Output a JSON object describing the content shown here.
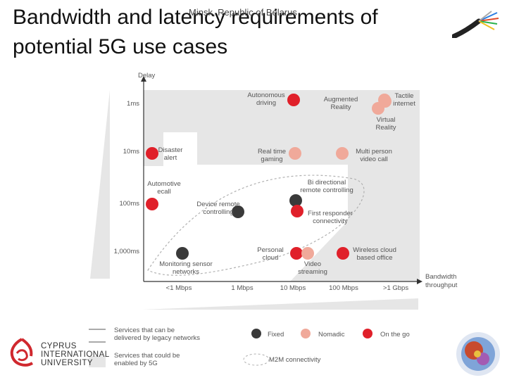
{
  "slide": {
    "title": "Bandwidth and latency requirements of potential 5G use cases",
    "subtitle": "Minsk, Republic of Belarus"
  },
  "logo": {
    "line1": "CYPRUS",
    "line2": "INTERNATIONAL",
    "line3": "UNIVERSITY"
  },
  "colors": {
    "fixed": "#3a3a3a",
    "nomadic": "#f0a99a",
    "on_the_go": "#e0202a",
    "chart_bg": "#e6e6e6",
    "text": "#555555"
  },
  "chart_data": {
    "type": "scatter",
    "xlabel": "Bandwidth throughput",
    "ylabel": "Delay",
    "x_categories": [
      "<1 Mbps",
      "1 Mbps",
      "10 Mbps",
      "100 Mbps",
      ">1 Gbps"
    ],
    "y_categories": [
      "1ms",
      "10ms",
      "100ms",
      "1,000ms"
    ],
    "points": [
      {
        "label": "Autonomous driving",
        "x": "10 Mbps",
        "y": "1ms",
        "category": "on_the_go"
      },
      {
        "label": "Augmented Reality",
        "x": "100 Mbps",
        "y": "1ms",
        "category": "nomadic"
      },
      {
        "label": "Tactile internet",
        "x": ">1 Gbps",
        "y": "1ms",
        "category": "nomadic"
      },
      {
        "label": "Virtual Reality",
        "x": ">1 Gbps",
        "y": "1ms",
        "category": "nomadic"
      },
      {
        "label": "Disaster alert",
        "x": "<1 Mbps",
        "y": "10ms",
        "category": "on_the_go"
      },
      {
        "label": "Real time gaming",
        "x": "10 Mbps",
        "y": "10ms",
        "category": "nomadic"
      },
      {
        "label": "Multi person video call",
        "x": "100 Mbps",
        "y": "10ms",
        "category": "nomadic"
      },
      {
        "label": "Automotive ecall",
        "x": "<1 Mbps",
        "y": "100ms",
        "category": "on_the_go"
      },
      {
        "label": "Device remote controlling",
        "x": "1 Mbps",
        "y": "100ms",
        "category": "fixed"
      },
      {
        "label": "Bi directional remote controlling",
        "x": "10 Mbps",
        "y": "100ms",
        "category": "fixed"
      },
      {
        "label": "First responder connectivity",
        "x": "10 Mbps",
        "y": "100ms",
        "category": "on_the_go"
      },
      {
        "label": "Monitoring sensor networks",
        "x": "<1 Mbps",
        "y": "1,000ms",
        "category": "fixed"
      },
      {
        "label": "Personal cloud",
        "x": "10 Mbps",
        "y": "1,000ms",
        "category": "on_the_go"
      },
      {
        "label": "Video streaming",
        "x": "10 Mbps",
        "y": "1,000ms",
        "category": "nomadic"
      },
      {
        "label": "Wireless cloud based office",
        "x": "100 Mbps",
        "y": "1,000ms",
        "category": "on_the_go"
      }
    ],
    "legend": {
      "legacy": "Services that can be delivered by legacy networks",
      "new5g": "Services that could be enabled by 5G",
      "fixed": "Fixed",
      "nomadic": "Nomadic",
      "on_the_go": "On the go",
      "m2m": "M2M connectivity"
    },
    "legend_position": "bottom",
    "grid": false
  }
}
